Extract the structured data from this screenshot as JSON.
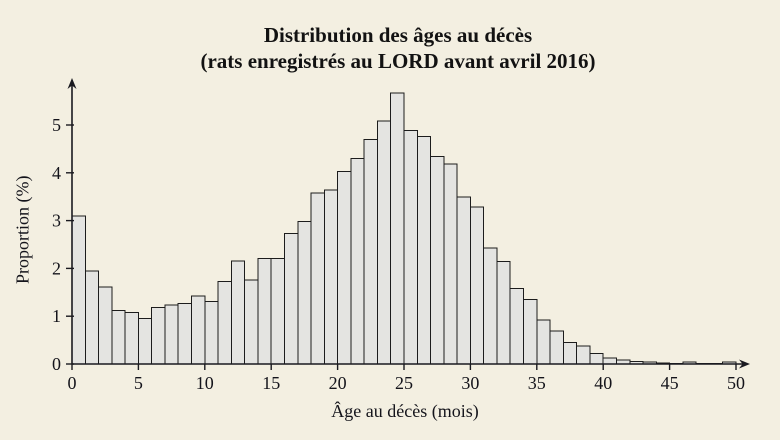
{
  "title": {
    "line1": "Distribution des âges au décès",
    "line2": "(rats enregistrés au LORD avant avril 2016)"
  },
  "chart_data": {
    "type": "bar",
    "subtype": "histogram",
    "title": "Distribution des âges au décès (rats enregistrés au LORD avant avril 2016)",
    "xlabel": "Âge au décès (mois)",
    "ylabel": "Proportion (%)",
    "unit": "percent",
    "bin_start": 0,
    "bin_width": 1,
    "n_bins": 50,
    "values": [
      3.1,
      1.95,
      1.61,
      1.12,
      1.08,
      0.95,
      1.18,
      1.23,
      1.27,
      1.42,
      1.31,
      1.73,
      2.15,
      1.76,
      2.21,
      2.21,
      2.73,
      2.98,
      3.58,
      3.64,
      4.03,
      4.3,
      4.7,
      5.08,
      5.67,
      4.88,
      4.76,
      4.34,
      4.18,
      3.49,
      3.28,
      2.43,
      2.14,
      1.58,
      1.35,
      0.92,
      0.69,
      0.45,
      0.38,
      0.22,
      0.13,
      0.08,
      0.05,
      0.04,
      0.02,
      0.01,
      0.04,
      0.01,
      0.01,
      0.04
    ],
    "x_ticks": [
      0,
      5,
      10,
      15,
      20,
      25,
      30,
      35,
      40,
      45,
      50
    ],
    "y_ticks": [
      0,
      1,
      2,
      3,
      4,
      5
    ],
    "xlim": [
      0,
      51
    ],
    "ylim": [
      0,
      6
    ],
    "grid": false,
    "legend": "none",
    "axis_arrows": true,
    "colors": {
      "background": "#f3efe1",
      "bar_fill": "#e4e4e1",
      "bar_stroke": "#1c1c1c",
      "axis": "#1a1a20",
      "text": "#14141b",
      "title": "#121212"
    }
  }
}
